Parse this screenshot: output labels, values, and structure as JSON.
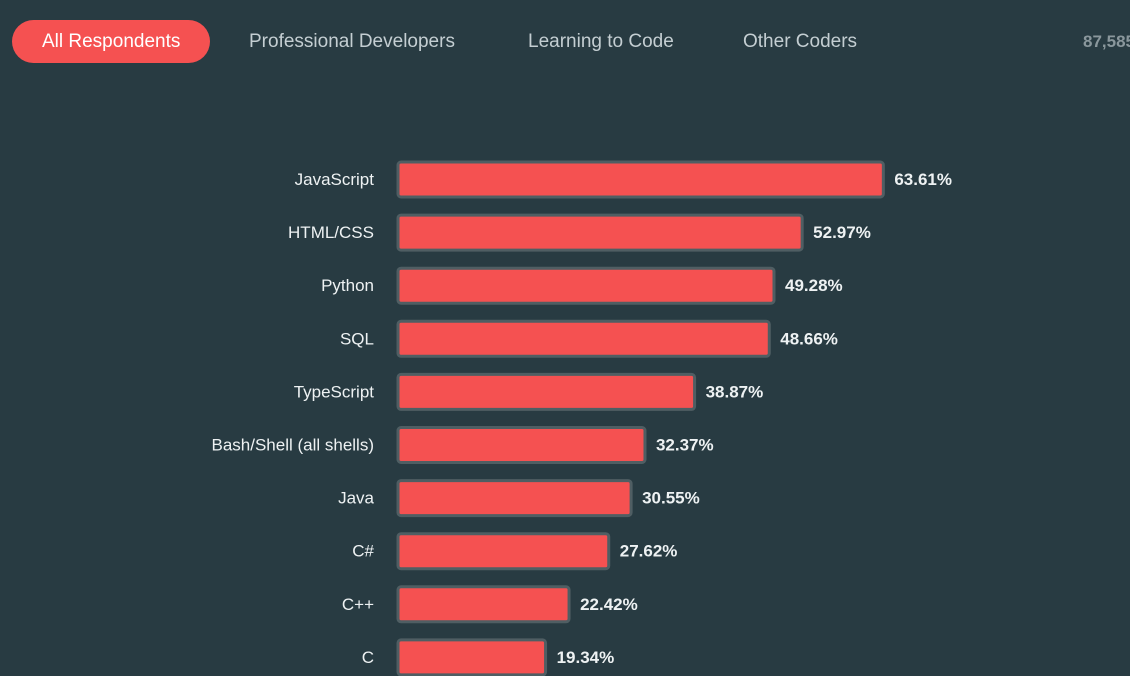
{
  "filters": {
    "tabs": [
      {
        "label": "All Respondents",
        "active": true
      },
      {
        "label": "Professional Developers",
        "active": false
      },
      {
        "label": "Learning to Code",
        "active": false
      },
      {
        "label": "Other Coders",
        "active": false
      }
    ],
    "respondent_count": "87,585"
  },
  "colors": {
    "background": "#283b42",
    "accent": "#f55151",
    "bar_outline": "#4f5e63"
  },
  "chart_data": {
    "type": "bar",
    "orientation": "horizontal",
    "categories": [
      "JavaScript",
      "HTML/CSS",
      "Python",
      "SQL",
      "TypeScript",
      "Bash/Shell (all shells)",
      "Java",
      "C#",
      "C++",
      "C"
    ],
    "values": [
      63.61,
      52.97,
      49.28,
      48.66,
      38.87,
      32.37,
      30.55,
      27.62,
      22.42,
      19.34
    ],
    "value_labels": [
      "63.61%",
      "52.97%",
      "49.28%",
      "48.66%",
      "38.87%",
      "32.37%",
      "30.55%",
      "27.62%",
      "22.42%",
      "19.34%"
    ],
    "xlim": [
      0,
      100
    ],
    "grid": false,
    "legend": "none"
  }
}
